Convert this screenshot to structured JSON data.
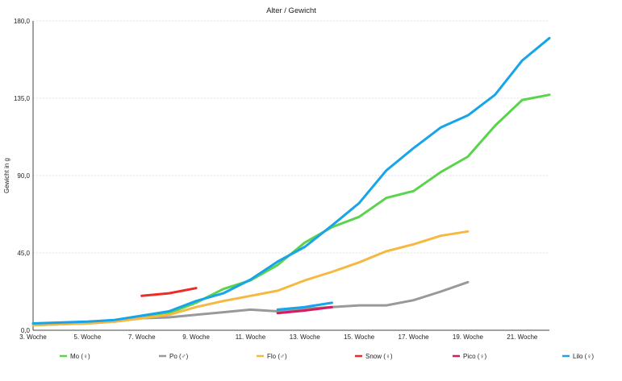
{
  "chart_data": {
    "type": "line",
    "title": "Alter / Gewicht",
    "xlabel": "",
    "ylabel": "Gewicht in g",
    "ylim": [
      0,
      180
    ],
    "xlim": [
      3,
      22
    ],
    "grid": true,
    "legend_position": "bottom",
    "y_ticks": [
      "0,0",
      "45,0",
      "90,0",
      "135,0",
      "180,0"
    ],
    "y_tick_values": [
      0,
      45,
      90,
      135,
      180
    ],
    "x_tick_values": [
      3,
      5,
      7,
      9,
      11,
      13,
      15,
      17,
      19,
      21
    ],
    "x_ticks": [
      "3. Woche",
      "5. Woche",
      "7. Woche",
      "9. Woche",
      "11. Woche",
      "13. Woche",
      "15. Woche",
      "17. Woche",
      "19. Woche",
      "21. Woche"
    ],
    "series": [
      {
        "name": "Mo (♀)",
        "color": "#5ad44c",
        "x": [
          3,
          4,
          5,
          6,
          7,
          8,
          9,
          10,
          11,
          12,
          13,
          14,
          15,
          16,
          17,
          18,
          19,
          20,
          21,
          22
        ],
        "y": [
          3,
          3.5,
          4.5,
          5.5,
          7.5,
          10,
          16,
          24,
          29,
          38,
          51,
          60,
          66,
          77,
          81,
          92,
          101,
          119,
          134,
          137
        ]
      },
      {
        "name": "Po (♂)",
        "color": "#999999",
        "x": [
          3,
          4,
          5,
          6,
          7,
          8,
          9,
          10,
          11,
          12,
          13,
          14,
          15,
          16,
          17,
          18,
          19
        ],
        "y": [
          3,
          3.5,
          4,
          5,
          7,
          7.5,
          9,
          10.5,
          12,
          11,
          12.5,
          13.5,
          14.5,
          14.5,
          17.5,
          22.5,
          28
        ]
      },
      {
        "name": "Flo (♂)",
        "color": "#f5b942",
        "x": [
          3,
          4,
          5,
          6,
          7,
          8,
          9,
          10,
          11,
          12,
          13,
          14,
          15,
          16,
          17,
          18,
          19
        ],
        "y": [
          3,
          3.5,
          4,
          5,
          7,
          9,
          13.5,
          17,
          20,
          23,
          29,
          34,
          39.5,
          46,
          50,
          55,
          57.5
        ]
      },
      {
        "name": "Snow (♀)",
        "color": "#ef2b25",
        "x": [
          7,
          8,
          9
        ],
        "y": [
          20,
          21.5,
          24.5
        ]
      },
      {
        "name": "Pico (♀)",
        "color": "#d81b60",
        "x": [
          12,
          13,
          14
        ],
        "y": [
          10,
          11.5,
          13.5
        ]
      },
      {
        "name": "Lilo (♀)",
        "color": "#17a4e8",
        "x": [
          3,
          4,
          5,
          6,
          7,
          8,
          9,
          10,
          11,
          12,
          13,
          14,
          15,
          16,
          17,
          18,
          19,
          20,
          21,
          22
        ],
        "y": [
          4,
          4.5,
          5,
          6,
          8.5,
          11,
          17,
          21.5,
          29.5,
          40,
          48.5,
          61,
          74,
          93,
          106,
          118,
          125,
          137,
          157,
          170
        ]
      },
      {
        "name": "Lilo (♀)",
        "color": "#17a4e8",
        "in_legend": false,
        "x": [
          12,
          13,
          14
        ],
        "y": [
          12,
          13.5,
          16
        ]
      }
    ]
  }
}
